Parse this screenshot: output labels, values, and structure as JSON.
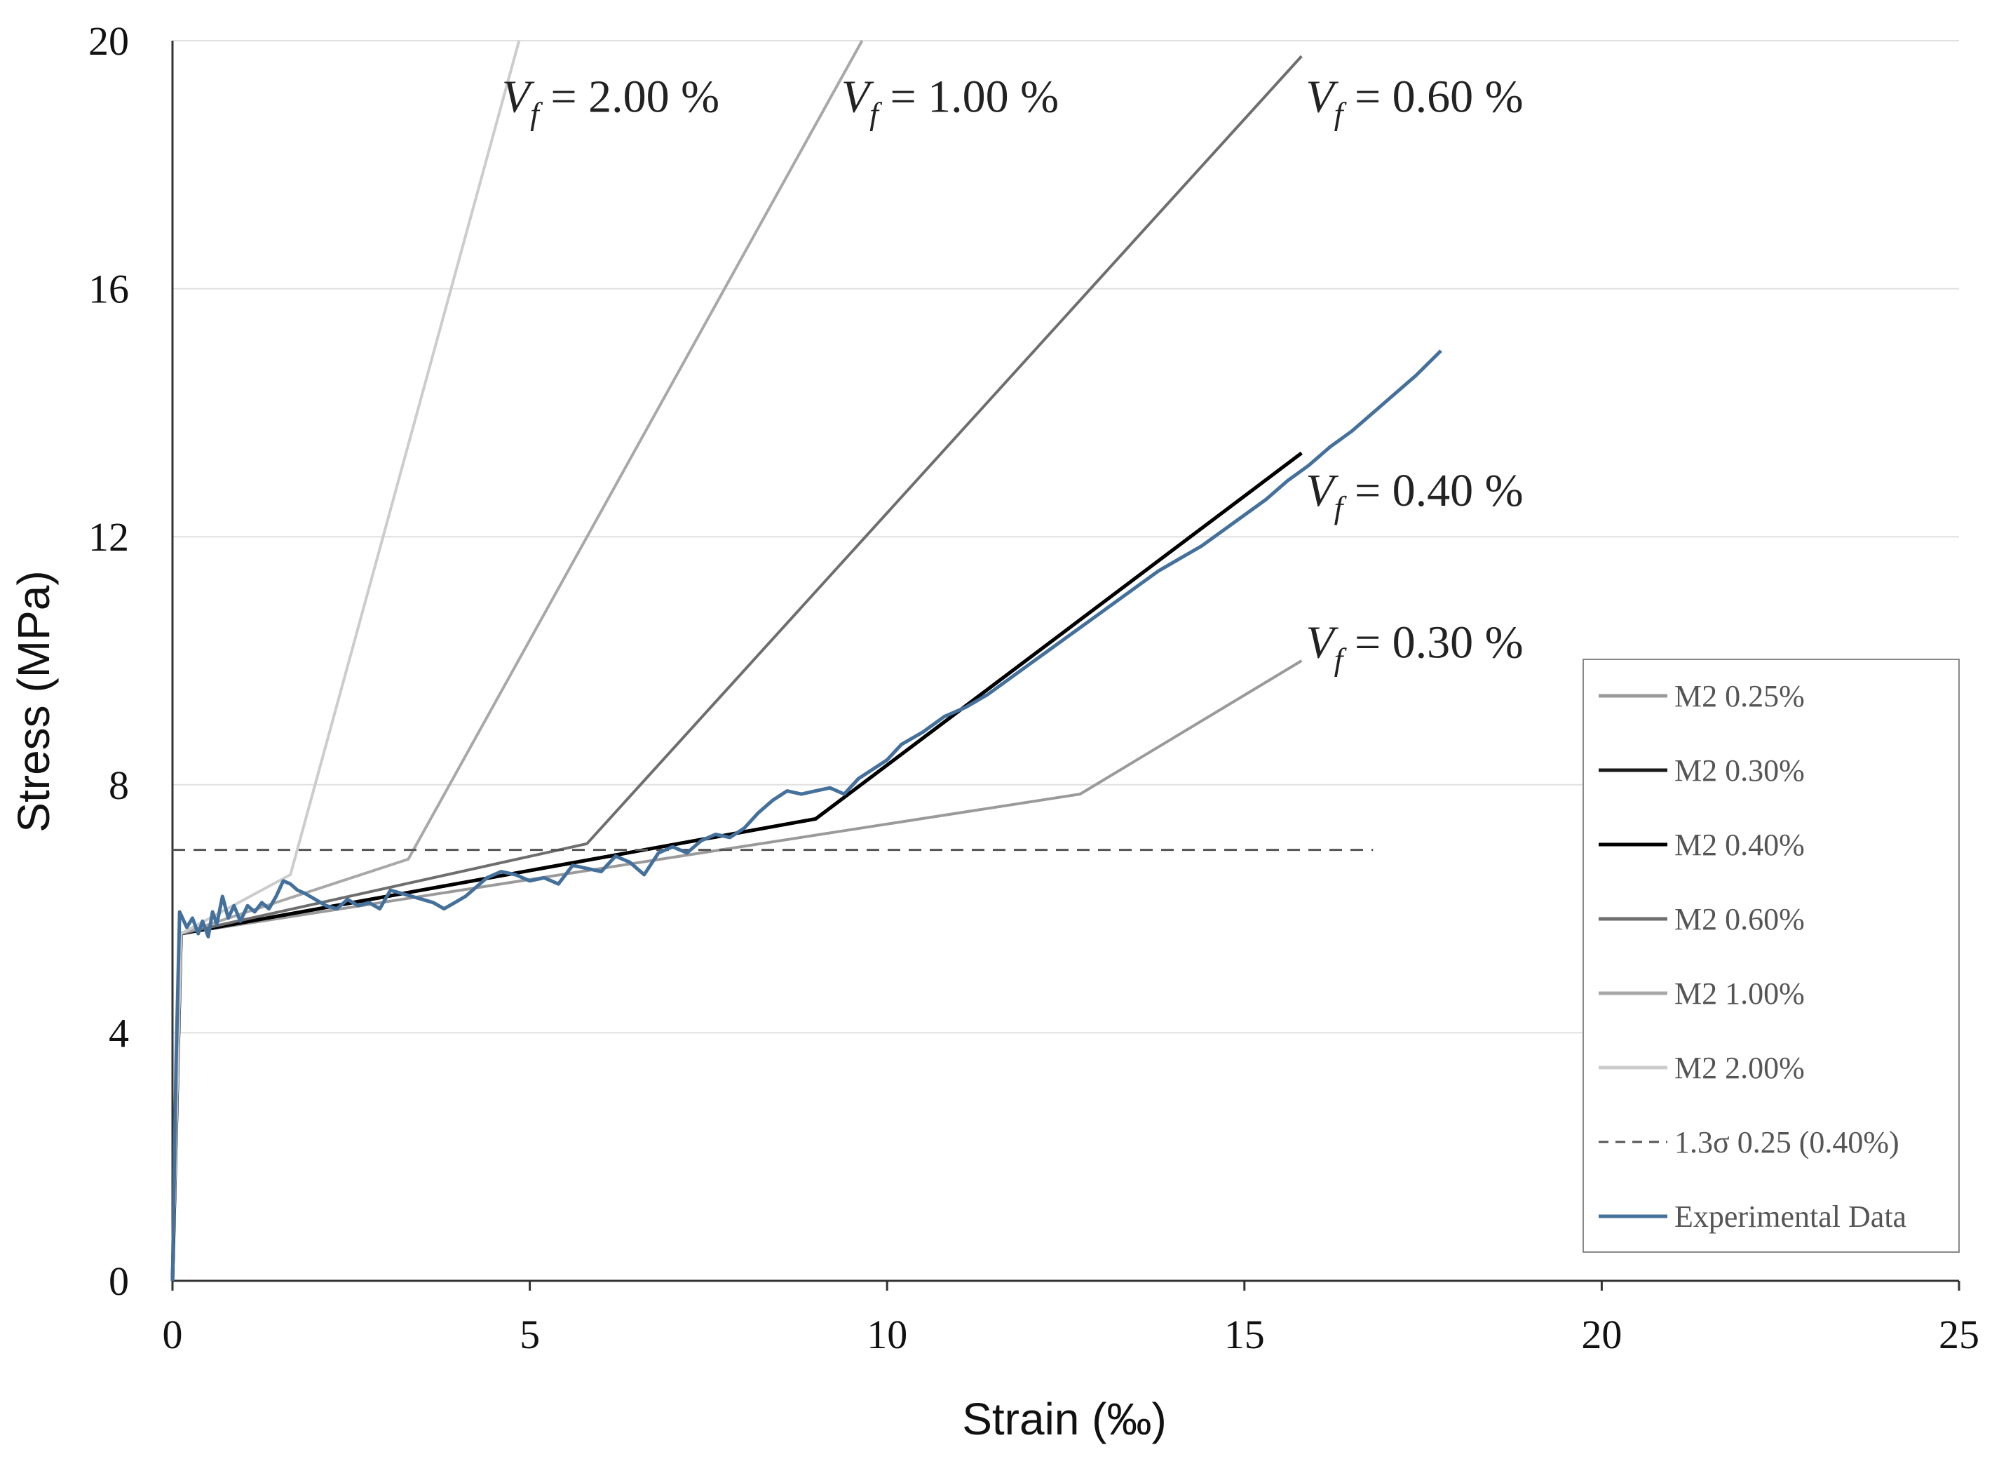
{
  "chart_data": {
    "type": "line",
    "title": "",
    "xlabel": "Strain (‰)",
    "ylabel": "Stress (MPa)",
    "xlim": [
      0,
      25
    ],
    "ylim": [
      0,
      20
    ],
    "x_ticks": [
      "0",
      "5",
      "10",
      "15",
      "20",
      "25"
    ],
    "y_ticks": [
      "0",
      "4",
      "8",
      "12",
      "16",
      "20"
    ],
    "grid": "horizontal",
    "legend_position": "right",
    "series": [
      {
        "name": "M2 0.25%",
        "color": "#9a9a9a",
        "dash": "solid",
        "x": [
          0,
          0.12,
          12.7,
          15.8
        ],
        "y": [
          0,
          5.6,
          7.85,
          10.0
        ]
      },
      {
        "name": "M2 0.30%",
        "color": "#1a1a1a",
        "dash": "solid",
        "x": [
          0,
          0.12,
          9.0,
          15.8
        ],
        "y": [
          0,
          5.6,
          7.45,
          13.35
        ]
      },
      {
        "name": "M2 0.40%",
        "color": "#000000",
        "dash": "solid",
        "x": [
          0,
          0.12,
          9.0,
          15.8
        ],
        "y": [
          0,
          5.6,
          7.45,
          13.35
        ]
      },
      {
        "name": "M2 0.60%",
        "color": "#6e6e6e",
        "dash": "solid",
        "x": [
          0,
          0.12,
          5.8,
          15.8
        ],
        "y": [
          0,
          5.6,
          7.05,
          19.75
        ]
      },
      {
        "name": "M2 1.00%",
        "color": "#a8a8a8",
        "dash": "solid",
        "x": [
          0,
          0.12,
          3.3,
          9.65
        ],
        "y": [
          0,
          5.6,
          6.8,
          20.0
        ]
      },
      {
        "name": "M2 2.00%",
        "color": "#cccccc",
        "dash": "solid",
        "x": [
          0,
          0.12,
          1.65,
          4.85
        ],
        "y": [
          0,
          5.6,
          6.55,
          20.0
        ]
      },
      {
        "name": "1.3σ 0.25  (0.40%)",
        "color": "#555555",
        "dash": "dashed",
        "x": [
          0,
          16.8
        ],
        "y": [
          6.95,
          6.95
        ]
      },
      {
        "name": "Experimental Data",
        "color": "#44709c",
        "dash": "solid",
        "x": [
          0,
          0.05,
          0.1,
          0.14,
          0.2,
          0.28,
          0.36,
          0.42,
          0.5,
          0.56,
          0.62,
          0.7,
          0.78,
          0.86,
          0.95,
          1.05,
          1.15,
          1.25,
          1.35,
          1.45,
          1.55,
          1.65,
          1.75,
          1.85,
          2.0,
          2.15,
          2.3,
          2.45,
          2.6,
          2.75,
          2.9,
          3.05,
          3.2,
          3.35,
          3.5,
          3.65,
          3.8,
          3.95,
          4.1,
          4.25,
          4.4,
          4.6,
          4.8,
          5.0,
          5.2,
          5.4,
          5.6,
          5.8,
          6.0,
          6.2,
          6.4,
          6.6,
          6.8,
          7.0,
          7.2,
          7.4,
          7.6,
          7.8,
          8.0,
          8.2,
          8.4,
          8.6,
          8.8,
          9.0,
          9.2,
          9.4,
          9.6,
          9.8,
          10.0,
          10.2,
          10.5,
          10.8,
          11.1,
          11.4,
          11.7,
          12.0,
          12.3,
          12.6,
          12.9,
          13.2,
          13.5,
          13.8,
          14.1,
          14.4,
          14.7,
          15.0,
          15.3,
          15.6,
          15.9,
          16.2,
          16.5,
          16.8,
          17.1,
          17.4,
          17.75
        ],
        "y": [
          0,
          3.5,
          5.95,
          5.85,
          5.7,
          5.85,
          5.6,
          5.8,
          5.55,
          5.95,
          5.75,
          6.2,
          5.85,
          6.05,
          5.8,
          6.05,
          5.95,
          6.1,
          6.0,
          6.2,
          6.45,
          6.4,
          6.3,
          6.25,
          6.15,
          6.05,
          6.0,
          6.15,
          6.05,
          6.1,
          6.0,
          6.3,
          6.25,
          6.2,
          6.15,
          6.1,
          6.0,
          6.1,
          6.2,
          6.35,
          6.5,
          6.6,
          6.55,
          6.45,
          6.5,
          6.4,
          6.7,
          6.65,
          6.6,
          6.85,
          6.75,
          6.55,
          6.9,
          7.0,
          6.9,
          7.1,
          7.2,
          7.15,
          7.3,
          7.55,
          7.75,
          7.9,
          7.85,
          7.9,
          7.95,
          7.85,
          8.1,
          8.25,
          8.4,
          8.65,
          8.85,
          9.1,
          9.25,
          9.45,
          9.7,
          9.95,
          10.2,
          10.45,
          10.7,
          10.95,
          11.2,
          11.45,
          11.65,
          11.85,
          12.1,
          12.35,
          12.6,
          12.9,
          13.15,
          13.45,
          13.7,
          14.0,
          14.3,
          14.6,
          15.0
        ]
      }
    ],
    "annotations": [
      {
        "var": "V",
        "sub": "f",
        "value": "= 2.00 %",
        "x": 4.55,
        "y": 19.1
      },
      {
        "var": "V",
        "sub": "f",
        "value": "= 1.00 %",
        "x": 9.3,
        "y": 19.1
      },
      {
        "var": "V",
        "sub": "f",
        "value": "= 0.60 %",
        "x": 15.8,
        "y": 19.1
      },
      {
        "var": "V",
        "sub": "f",
        "value": "= 0.40 %",
        "x": 15.8,
        "y": 12.75
      },
      {
        "var": "V",
        "sub": "f",
        "value": "= 0.30 %",
        "x": 15.8,
        "y": 10.3
      }
    ]
  }
}
